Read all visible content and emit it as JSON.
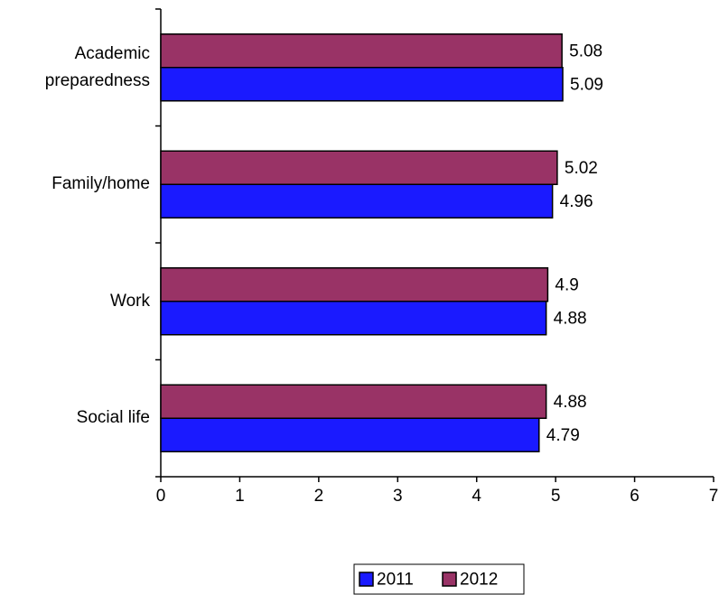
{
  "chart_data": {
    "type": "bar",
    "orientation": "horizontal",
    "categories": [
      "Academic preparedness",
      "Family/home",
      "Work",
      "Social life"
    ],
    "series": [
      {
        "name": "2011",
        "color": "#1a1aff",
        "values": [
          5.09,
          4.96,
          4.88,
          4.79
        ]
      },
      {
        "name": "2012",
        "color": "#993366",
        "values": [
          5.08,
          5.02,
          4.9,
          4.88
        ]
      }
    ],
    "xlim": [
      0,
      7
    ],
    "xticks": [
      0,
      1,
      2,
      3,
      4,
      5,
      6,
      7
    ],
    "legend": "bottom"
  }
}
